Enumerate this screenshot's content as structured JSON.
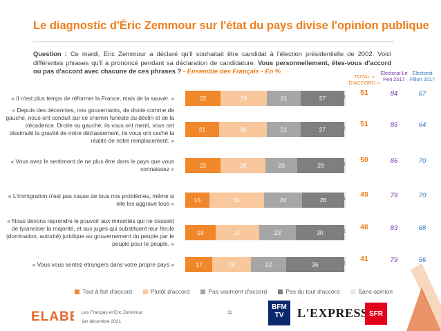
{
  "title": "Le diagnostic d'Éric Zemmour sur l'état du pays divise l'opinion publique",
  "question": {
    "label": "Question :",
    "text": "Ce mardi, Eric Zemmour a déclaré qu'il souhaitait être candidat à l'élection présidentielle de 2002. Voici différentes phrases qu'il a prononcé pendant sa déclaration de candidature.",
    "strong": "Vous personnellement, êtes-vous d'accord ou pas d'accord avec chacune de ces phrases ?",
    "sub": "- Ensemble des Français - En %"
  },
  "column_headers": {
    "total": "TOTAL « D'ACCORD »",
    "lepen": "Electorat Le Pen 2017",
    "fillon": "Electorat Fillon 2017"
  },
  "chart_data": {
    "type": "bar",
    "orientation": "horizontal",
    "stacked": true,
    "categories": [
      "« Il n'est plus temps de réformer la France, mais de la sauver. »",
      "« Depuis des décennies, nos gouvernants, de droite comme de gauche, nous ont conduit sur ce chemin funeste du déclin et de la décadence. Droite ou gauche, ils vous ont menti, vous ont dissimulé la gravité de notre déclassement, ils vous ont caché la réalité de notre remplacement. »",
      "« Vous avez le sentiment de ne plus être dans le pays que vous connaissez »",
      "« L'immigration n'est pas cause de tous nos problèmes, même si elle les aggrave tous »",
      "« Nous devons reprendre le pouvoir aux minorités qui ne cessent de tyranniser la majorité, et aux juges qui substituent leur férule (domination, autorité) juridique au gouvernement du peuple par le peuple pour le peuple. »",
      "« Vous vous sentez étrangers dans votre propre pays »"
    ],
    "series": [
      {
        "name": "Tout à fait d'accord",
        "color": "#f0872b",
        "values": [
          22,
          21,
          22,
          15,
          19,
          17
        ]
      },
      {
        "name": "Plutôt d'accord",
        "color": "#f9c79c",
        "values": [
          29,
          30,
          28,
          34,
          27,
          24
        ]
      },
      {
        "name": "Pas vraiment d'accord",
        "color": "#a6a6a6",
        "values": [
          21,
          21,
          20,
          24,
          23,
          22
        ]
      },
      {
        "name": "Pas du tout d'accord",
        "color": "#7f7f7f",
        "values": [
          27,
          27,
          29,
          26,
          30,
          36
        ]
      },
      {
        "name": "Sans opinion",
        "color": "#e6e6e6",
        "values": [
          1,
          1,
          1,
          1,
          1,
          1
        ]
      }
    ],
    "total_accord": [
      51,
      51,
      50,
      49,
      46,
      41
    ],
    "electorat_le_pen_2017": [
      84,
      85,
      86,
      79,
      83,
      79
    ],
    "electorat_fillon_2017": [
      67,
      64,
      70,
      70,
      68,
      56
    ],
    "xlim": [
      0,
      100
    ],
    "legend_position": "bottom"
  },
  "footer": {
    "brand": "ELABE",
    "line1": "Les Français et Eric Zemmour",
    "line2": "1er décembre 2021",
    "page": "11",
    "partner1": "BFM TV",
    "partner2": "L'EXPRESS",
    "partner3": "SFR"
  }
}
